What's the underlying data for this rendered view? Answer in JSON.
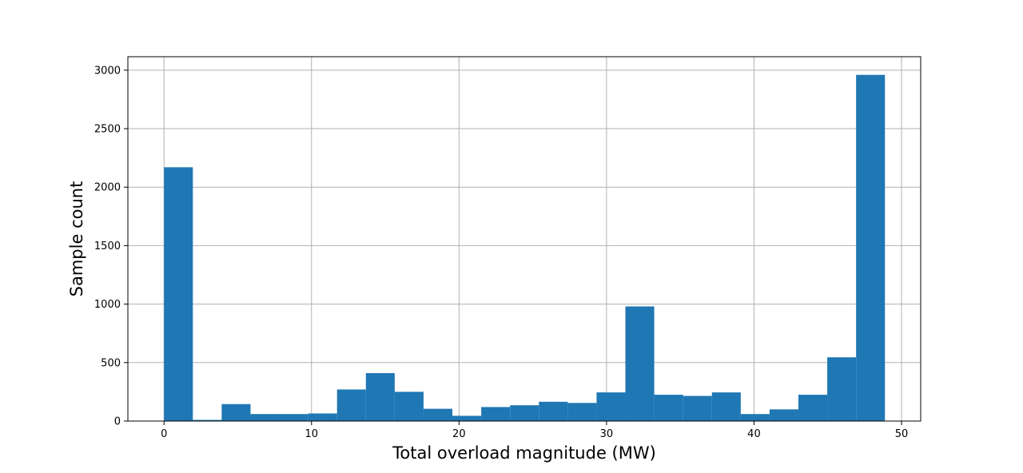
{
  "chart_data": {
    "type": "bar",
    "title": "",
    "xlabel": "Total overload magnitude (MW)",
    "ylabel": "Sample count",
    "xlim": [
      -2.45,
      51.3
    ],
    "ylim": [
      0,
      3115
    ],
    "xticks": [
      0,
      10,
      20,
      30,
      40,
      50
    ],
    "yticks": [
      0,
      500,
      1000,
      1500,
      2000,
      2500,
      3000
    ],
    "grid": true,
    "bar_color": "#1f77b4",
    "bin_width": 1.955,
    "bins": [
      {
        "start": 0.0,
        "end": 1.955,
        "count": 2170
      },
      {
        "start": 1.955,
        "end": 3.91,
        "count": 10
      },
      {
        "start": 3.91,
        "end": 5.865,
        "count": 145
      },
      {
        "start": 5.865,
        "end": 7.82,
        "count": 60
      },
      {
        "start": 7.82,
        "end": 9.775,
        "count": 60
      },
      {
        "start": 9.775,
        "end": 11.73,
        "count": 65
      },
      {
        "start": 11.73,
        "end": 13.685,
        "count": 270
      },
      {
        "start": 13.685,
        "end": 15.64,
        "count": 410
      },
      {
        "start": 15.64,
        "end": 17.595,
        "count": 250
      },
      {
        "start": 17.595,
        "end": 19.55,
        "count": 105
      },
      {
        "start": 19.55,
        "end": 21.505,
        "count": 45
      },
      {
        "start": 21.505,
        "end": 23.46,
        "count": 120
      },
      {
        "start": 23.46,
        "end": 25.415,
        "count": 135
      },
      {
        "start": 25.415,
        "end": 27.37,
        "count": 165
      },
      {
        "start": 27.37,
        "end": 29.325,
        "count": 155
      },
      {
        "start": 29.325,
        "end": 31.28,
        "count": 245
      },
      {
        "start": 31.28,
        "end": 33.235,
        "count": 980
      },
      {
        "start": 33.235,
        "end": 35.19,
        "count": 225
      },
      {
        "start": 35.19,
        "end": 37.145,
        "count": 215
      },
      {
        "start": 37.145,
        "end": 39.1,
        "count": 245
      },
      {
        "start": 39.1,
        "end": 41.055,
        "count": 60
      },
      {
        "start": 41.055,
        "end": 43.01,
        "count": 100
      },
      {
        "start": 43.01,
        "end": 44.965,
        "count": 225
      },
      {
        "start": 44.965,
        "end": 46.92,
        "count": 545
      },
      {
        "start": 46.92,
        "end": 48.875,
        "count": 2960
      }
    ]
  }
}
